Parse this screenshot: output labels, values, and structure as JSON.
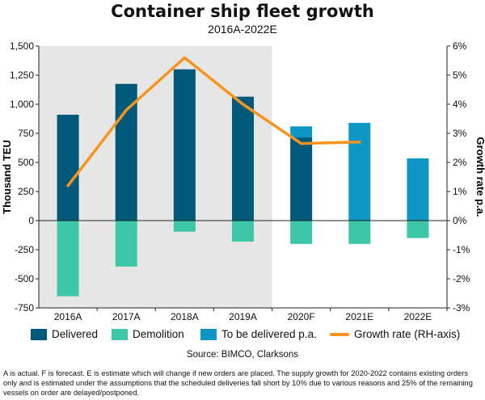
{
  "title": "Container ship fleet growth",
  "subtitle": "2016A-2022E",
  "source": "Source: BIMCO, Clarksons",
  "footnote": "A is actual. F is forecast. E is estimate which will change if new orders are placed. The supply growth for 2020-2022 contains existing orders only and is estimated under the assumptions that the scheduled deliveries fall short by 10% due to various reasons and 25% of the remaining vessels on order are delayed/postponed.",
  "legend": {
    "delivered": "Delivered",
    "demolition": "Demolition",
    "to_be_delivered": "To be delivered p.a.",
    "growth": "Growth rate (RH-axis)"
  },
  "colors": {
    "delivered": "#00587a",
    "demolition": "#3ec6a8",
    "to_be_delivered": "#0e97c6",
    "growth": "#f7941d",
    "shaded": "#e6e6e6"
  },
  "chart_data": {
    "type": "bar",
    "categories": [
      "2016A",
      "2017A",
      "2018A",
      "2019A",
      "2020F",
      "2021E",
      "2022E"
    ],
    "series": [
      {
        "name": "Delivered",
        "values": [
          910,
          1175,
          1300,
          1065,
          715,
          null,
          null
        ]
      },
      {
        "name": "Demolition",
        "values": [
          -650,
          -395,
          -95,
          -180,
          -200,
          -200,
          -150
        ]
      },
      {
        "name": "To be delivered p.a.",
        "values": [
          null,
          null,
          null,
          null,
          95,
          840,
          535
        ]
      },
      {
        "name": "Growth rate (RH-axis)",
        "type": "line",
        "axis": "right",
        "values": [
          1.2,
          3.8,
          5.6,
          4.0,
          2.65,
          2.7,
          null
        ]
      }
    ],
    "ylabel": "Thousand TEU",
    "y2label": "Growth rate p.a.",
    "ylim": [
      -750,
      1500
    ],
    "y2lim": [
      -3,
      6
    ],
    "yticks": [
      "-750",
      "-500",
      "-250",
      "0",
      "250",
      "500",
      "750",
      "1,000",
      "1,250",
      "1,500"
    ],
    "y2ticks": [
      "-3%",
      "-2%",
      "-1%",
      "0%",
      "1%",
      "2%",
      "3%",
      "4%",
      "5%",
      "6%"
    ],
    "shaded_categories": [
      "2016A",
      "2017A",
      "2018A",
      "2019A"
    ],
    "grid": false,
    "legend_position": "bottom"
  }
}
